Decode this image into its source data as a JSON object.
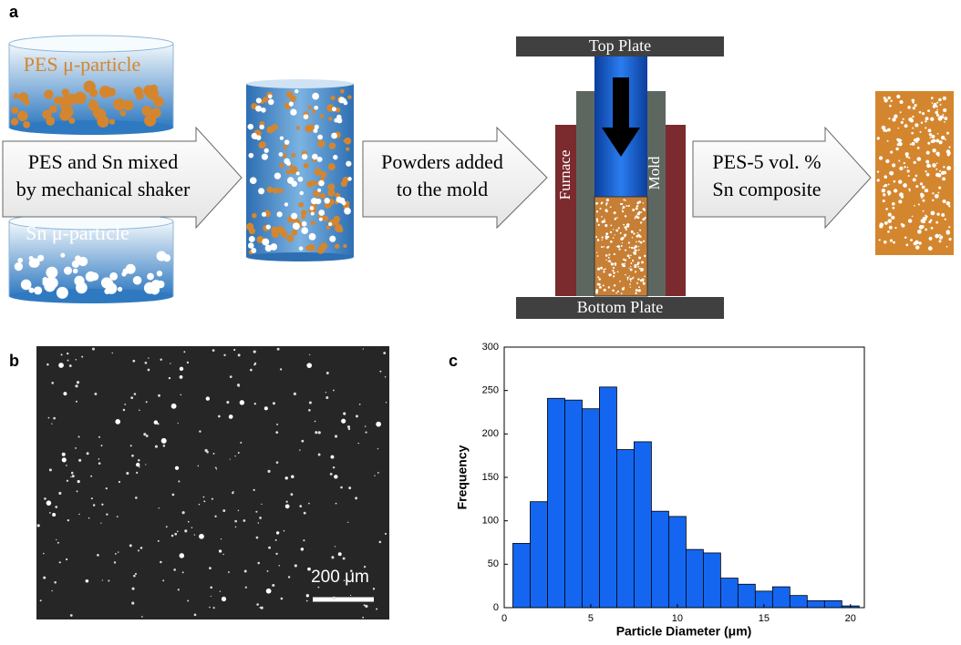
{
  "panel_labels": [
    "a",
    "b",
    "c"
  ],
  "diagram": {
    "pes_particle": "PES μ-particle",
    "sn_particle": "Sn μ-particle",
    "mixing_step": [
      "PES and Sn mixed",
      "by mechanical shaker"
    ],
    "mold_step": [
      "Powders added",
      "to the mold"
    ],
    "top_plate": "Top Plate",
    "bottom_plate": "Bottom Plate",
    "furnace": "Furnace",
    "mold": "Mold",
    "result": [
      "PES-5 vol. %",
      "Sn composite"
    ]
  },
  "micrograph": {
    "scale_bar": "200 μm"
  },
  "chart_data": {
    "type": "histogram",
    "xlabel": "Particle Diameter (μm)",
    "ylabel": "Frequency",
    "bins": [
      0.5,
      1.5,
      2.5,
      3.5,
      4.5,
      5.5,
      6.5,
      7.5,
      8.5,
      9.5,
      10.5,
      11.5,
      12.5,
      13.5,
      14.5,
      15.5,
      16.5,
      17.5,
      18.5,
      19.5,
      20.5
    ],
    "values": [
      74,
      122,
      241,
      239,
      229,
      254,
      182,
      191,
      111,
      105,
      67,
      63,
      34,
      27,
      19,
      24,
      14,
      8,
      8,
      2
    ],
    "color": "#1466f0",
    "xlim": [
      0,
      20.8
    ],
    "ylim": [
      0,
      300
    ],
    "xticks": [
      0,
      5,
      10,
      15,
      20
    ],
    "yticks": [
      0,
      50,
      100,
      150,
      200,
      250,
      300
    ]
  }
}
